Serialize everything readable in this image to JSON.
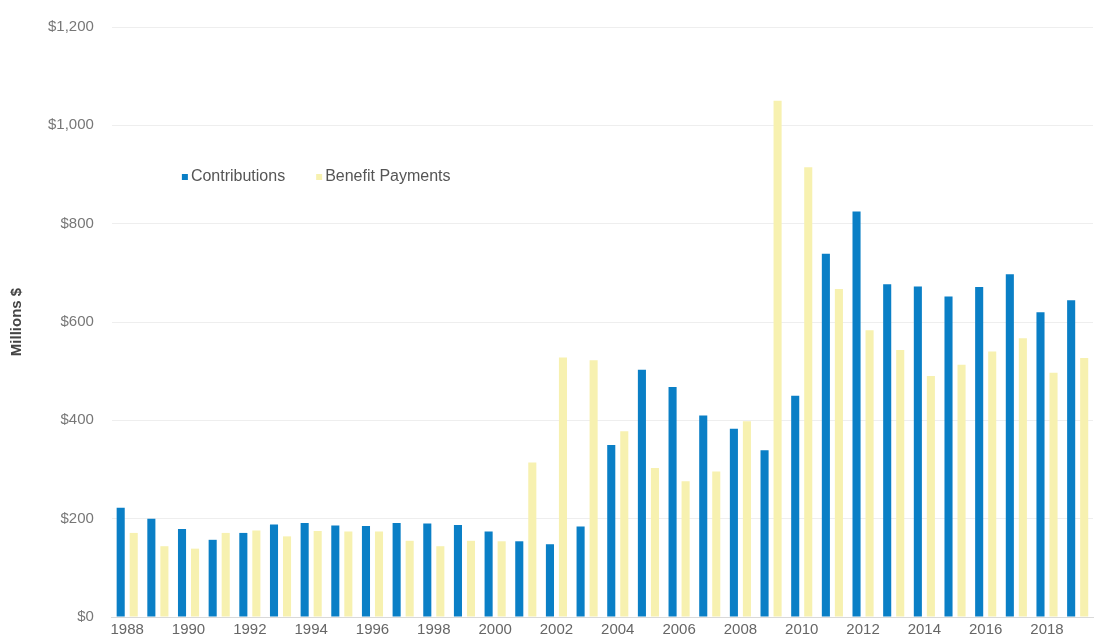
{
  "chart_data": {
    "type": "bar",
    "ylabel": "Millions $",
    "categories": [
      "1988",
      null,
      "1990",
      null,
      "1992",
      null,
      "1994",
      null,
      "1996",
      null,
      "1998",
      null,
      "2000",
      null,
      "2002",
      null,
      "2004",
      null,
      "2006",
      null,
      "2008",
      null,
      "2010",
      null,
      "2012",
      null,
      "2014",
      null,
      "2016",
      null,
      "2018",
      null
    ],
    "series": [
      {
        "name": "Contributions",
        "color": "#0a7fc6",
        "values": [
          222,
          200,
          179,
          157,
          171,
          188,
          191,
          186,
          185,
          191,
          190,
          187,
          174,
          154,
          148,
          184,
          350,
          503,
          468,
          410,
          383,
          339,
          450,
          739,
          825,
          677,
          672,
          652,
          671,
          697,
          620,
          644
        ]
      },
      {
        "name": "Benefit Payments",
        "color": "#f7f1b0",
        "values": [
          171,
          144,
          139,
          171,
          176,
          164,
          175,
          174,
          174,
          155,
          144,
          155,
          154,
          314,
          528,
          522,
          378,
          303,
          276,
          296,
          398,
          1050,
          915,
          667,
          583,
          543,
          490,
          513,
          540,
          567,
          497,
          527
        ]
      }
    ],
    "ylim": [
      0,
      1200
    ],
    "yticks": [
      {
        "value": 0,
        "label": "$0"
      },
      {
        "value": 200,
        "label": "$200"
      },
      {
        "value": 400,
        "label": "$400"
      },
      {
        "value": 600,
        "label": "$600"
      },
      {
        "value": 800,
        "label": "$800"
      },
      {
        "value": 1000,
        "label": "$1,000"
      },
      {
        "value": 1200,
        "label": "$1,200"
      }
    ],
    "grid": "y",
    "legend": "top left"
  }
}
